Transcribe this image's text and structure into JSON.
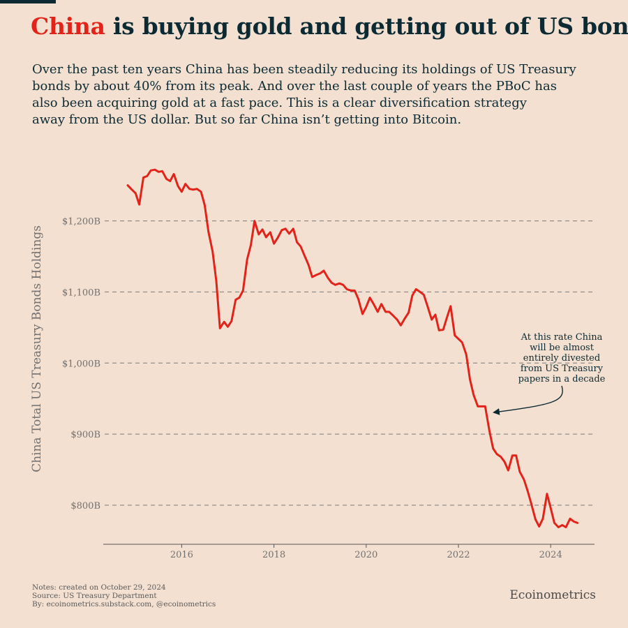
{
  "header": {
    "title_highlight": "China",
    "title_rest": " is buying gold and getting out of US bonds",
    "subtitle_lines": [
      "Over the past ten years China has been steadily reducing its holdings of US Treasury",
      "bonds by about 40% from its peak. And over the last couple of years the PBoC has",
      "also been acquiring gold at a fast pace. This is a clear diversification strategy",
      "away from the US dollar. But so far China isn’t getting into Bitcoin."
    ]
  },
  "chart_data": {
    "type": "line",
    "ylabel": "China Total US Treasury Bonds Holdings",
    "xlabel": "",
    "y_unit": "billion USD",
    "ylim": [
      745,
      1285
    ],
    "xlim": [
      2014.3,
      2024.95
    ],
    "yticks": [
      {
        "value": 800,
        "label": "$800B"
      },
      {
        "value": 900,
        "label": "$900B"
      },
      {
        "value": 1000,
        "label": "$1,000B"
      },
      {
        "value": 1100,
        "label": "$1,100B"
      },
      {
        "value": 1200,
        "label": "$1,200B"
      }
    ],
    "xticks": [
      {
        "value": 2016,
        "label": "2016"
      },
      {
        "value": 2018,
        "label": "2018"
      },
      {
        "value": 2020,
        "label": "2020"
      },
      {
        "value": 2022,
        "label": "2022"
      },
      {
        "value": 2024,
        "label": "2024"
      }
    ],
    "grid": "horizontal dashed",
    "line_color": "#e2231a",
    "series": [
      {
        "x": [
          2014.83,
          2014.92,
          2015.0,
          2015.08,
          2015.17,
          2015.25,
          2015.33,
          2015.42,
          2015.5,
          2015.58,
          2015.67,
          2015.75,
          2015.83,
          2015.92,
          2016.0,
          2016.08,
          2016.17,
          2016.25,
          2016.33,
          2016.42,
          2016.5,
          2016.58,
          2016.67,
          2016.75,
          2016.83,
          2016.92,
          2017.0,
          2017.08,
          2017.17,
          2017.25,
          2017.33,
          2017.42,
          2017.5,
          2017.58,
          2017.67,
          2017.75,
          2017.83,
          2017.92,
          2018.0,
          2018.08,
          2018.17,
          2018.25,
          2018.33,
          2018.42,
          2018.5,
          2018.58,
          2018.67,
          2018.75,
          2018.83,
          2018.92,
          2019.0,
          2019.08,
          2019.17,
          2019.25,
          2019.33,
          2019.42,
          2019.5,
          2019.58,
          2019.67,
          2019.75,
          2019.83,
          2019.92,
          2020.0,
          2020.08,
          2020.17,
          2020.25,
          2020.33,
          2020.42,
          2020.5,
          2020.58,
          2020.67,
          2020.75,
          2020.83,
          2020.92,
          2021.0,
          2021.08,
          2021.17,
          2021.25,
          2021.33,
          2021.42,
          2021.5,
          2021.58,
          2021.67,
          2021.75,
          2021.83,
          2021.92,
          2022.0,
          2022.08,
          2022.17,
          2022.25,
          2022.33,
          2022.42,
          2022.5,
          2022.58,
          2022.67,
          2022.75,
          2022.83,
          2022.92,
          2023.0,
          2023.08,
          2023.17,
          2023.25,
          2023.33,
          2023.42,
          2023.5,
          2023.58,
          2023.67,
          2023.75,
          2023.83,
          2023.92,
          2024.0,
          2024.08,
          2024.17,
          2024.25,
          2024.33,
          2024.42,
          2024.5,
          2024.58
        ],
        "values": [
          1250,
          1244,
          1239,
          1223,
          1261,
          1263,
          1271,
          1272,
          1269,
          1270,
          1259,
          1256,
          1266,
          1249,
          1241,
          1252,
          1245,
          1244,
          1245,
          1241,
          1222,
          1185,
          1157,
          1115,
          1049,
          1058,
          1051,
          1059,
          1089,
          1092,
          1102,
          1146,
          1166,
          1200,
          1181,
          1188,
          1177,
          1184,
          1168,
          1176,
          1187,
          1189,
          1182,
          1189,
          1170,
          1164,
          1150,
          1138,
          1121,
          1124,
          1126,
          1130,
          1120,
          1113,
          1110,
          1112,
          1110,
          1104,
          1102,
          1102,
          1090,
          1069,
          1079,
          1092,
          1082,
          1072,
          1083,
          1072,
          1072,
          1067,
          1061,
          1053,
          1062,
          1071,
          1095,
          1104,
          1100,
          1096,
          1080,
          1061,
          1068,
          1046,
          1047,
          1064,
          1080,
          1039,
          1034,
          1029,
          1012,
          977,
          955,
          939,
          939,
          939,
          905,
          880,
          872,
          868,
          861,
          849,
          870,
          870,
          847,
          836,
          820,
          802,
          780,
          770,
          781,
          816,
          796,
          775,
          769,
          772,
          769,
          781,
          777,
          775
        ]
      }
    ],
    "annotation": "At this rate China\nwill be almost\nentirely divested\nfrom US Treasury\npapers in a decade"
  },
  "footer": {
    "notes": [
      "Notes: created on October 29, 2024",
      "Source: US Treasury Department",
      "By: ecoinometrics.substack.com, @ecoinometrics"
    ],
    "brand": "Ecoinometrics"
  },
  "colors": {
    "background": "#f3e0d1",
    "title": "#0b2a33",
    "accent": "#e2231a",
    "grid": "#7a7a7a",
    "axis_text": "#707070"
  }
}
